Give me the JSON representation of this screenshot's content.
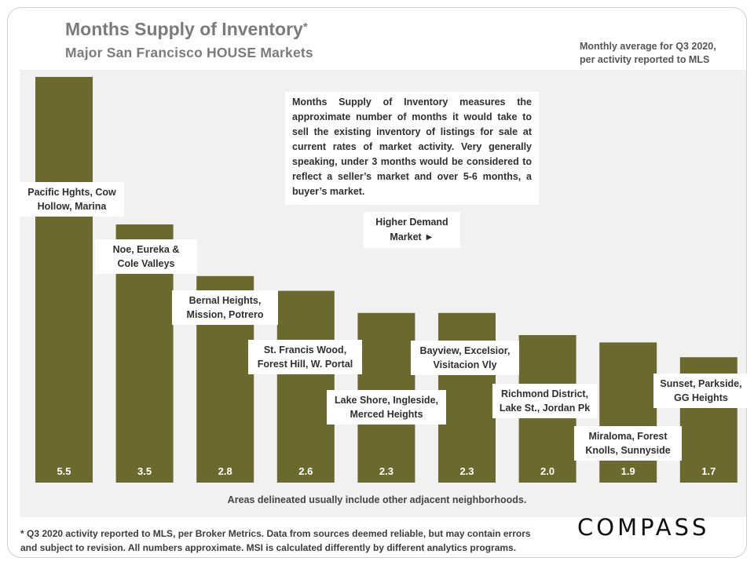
{
  "title": "Months Supply of Inventory",
  "title_mark": "*",
  "subtitle": "Major San Francisco HOUSE Markets",
  "note_top_right": [
    "Monthly average for Q3 2020,",
    "per activity reported to MLS"
  ],
  "description": "Months Supply of Inventory measures the approximate number of months it would take to sell the existing inventory of listings for sale at current rates of market activity. Very generally speaking, under 3 months would be considered to reflect a seller’s market and over 5-6 months, a buyer’s market.",
  "demand_label": [
    "Higher Demand",
    "Market ►"
  ],
  "areas_note": "Areas delineated usually include other adjacent neighborhoods.",
  "footer": [
    "* Q3 2020 activity reported to MLS, per Broker Metrics. Data from sources deemed reliable, but may contain errors",
    "and subject to revision. All numbers approximate.  MSI is calculated differently by different analytics programs."
  ],
  "logo": "COMPASS",
  "colors": {
    "bar": "#6b6a2e",
    "plot_bg": "#f1f1f1",
    "title": "#7b7b7b",
    "value_text": "#ffffff"
  },
  "chart_data": {
    "type": "bar",
    "title": "Months Supply of Inventory",
    "subtitle": "Major San Francisco HOUSE Markets",
    "categories": [
      [
        "Pacific Hghts, Cow",
        "Hollow, Marina"
      ],
      [
        "Noe, Eureka &",
        "Cole Valleys"
      ],
      [
        "Bernal Heights,",
        "Mission, Potrero"
      ],
      [
        "St. Francis Wood,",
        "Forest Hill, W. Portal"
      ],
      [
        "Lake Shore, Ingleside,",
        "Merced Heights"
      ],
      [
        "Bayview, Excelsior,",
        "Visitacion Vly"
      ],
      [
        "Richmond District,",
        "Lake St., Jordan Pk"
      ],
      [
        "Miraloma, Forest",
        "Knolls, Sunnyside"
      ],
      [
        "Sunset, Parkside,",
        "GG Heights"
      ]
    ],
    "values": [
      5.5,
      3.5,
      2.8,
      2.6,
      2.3,
      2.3,
      2.0,
      1.9,
      1.7
    ],
    "value_labels": [
      "5.5",
      "3.5",
      "2.8",
      "2.6",
      "2.3",
      "2.3",
      "2.0",
      "1.9",
      "1.7"
    ],
    "ylim": [
      0,
      5.5
    ],
    "grid": false,
    "legend": "none"
  }
}
